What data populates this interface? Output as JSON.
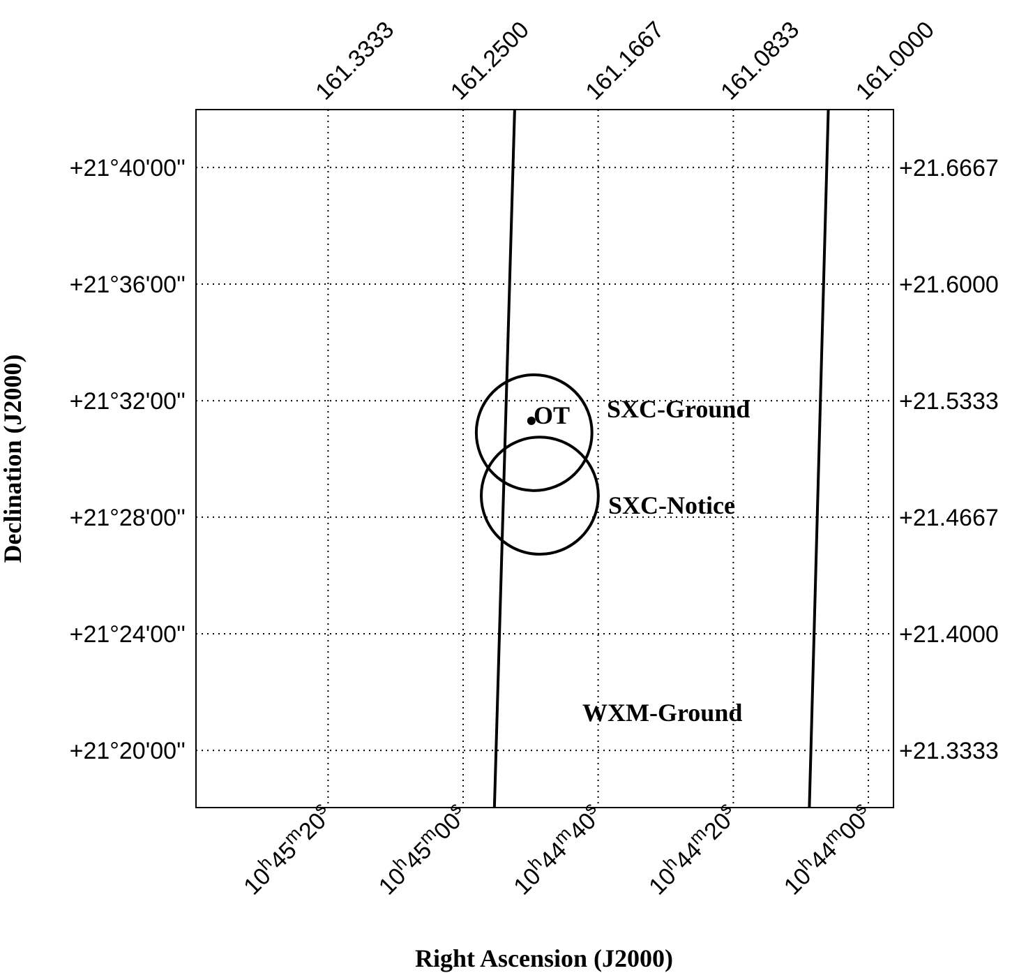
{
  "chart_data": {
    "type": "skymap",
    "xlabel": "Right Ascension (J2000)",
    "ylabel": "Declination (J2000)",
    "xlim": [
      161.4148,
      160.9845
    ],
    "ylim": [
      21.3006,
      21.6998
    ],
    "xticks": [
      {
        "value": 161.3333,
        "label": "10h45m20s"
      },
      {
        "value": 161.25,
        "label": "10h45m00s"
      },
      {
        "value": 161.1667,
        "label": "10h44m40s"
      },
      {
        "value": 161.0833,
        "label": "10h44m20s"
      },
      {
        "value": 161.0,
        "label": "10h44m00s"
      }
    ],
    "x2ticks": [
      161.3333,
      {
        "value": 161.25,
        "label": "161.2500"
      },
      161.1667,
      161.0833,
      {
        "value": 161.0,
        "label": "161.0000"
      }
    ],
    "yticks": [
      {
        "value": 21.6667,
        "label": "+21°40'00''"
      },
      {
        "value": 21.6,
        "label": "+21°36'00''"
      },
      {
        "value": 21.5333,
        "label": "+21°32'00''"
      },
      {
        "value": 21.4667,
        "label": "+21°28'00''"
      },
      {
        "value": 21.4,
        "label": "+21°24'00''"
      },
      {
        "value": 21.3333,
        "label": "+21°20'00''"
      }
    ],
    "y2ticks": [
      {
        "value": 21.6667,
        "label": "+21.6667"
      },
      {
        "value": 21.6,
        "label": "+21.6000"
      },
      {
        "value": 21.5333,
        "label": "+21.5333"
      },
      {
        "value": 21.4667,
        "label": "+21.4667"
      },
      {
        "value": 21.4,
        "label": "+21.4000"
      },
      {
        "value": 21.3333,
        "label": "+21.3333"
      }
    ],
    "grid": true,
    "series": [
      {
        "name": "WXM-Ground",
        "shape": "line",
        "color": "#000000",
        "x": [
          161.2182,
          161.2307,
          null,
          161.0247,
          161.0364
        ],
        "y": [
          21.6998,
          21.3006,
          null,
          21.6998,
          21.3006
        ]
      },
      {
        "name": "SXC-Ground",
        "shape": "circle",
        "color": "#000000",
        "x": [
          161.2062
        ],
        "y": [
          21.515
        ],
        "radius": [
          0.0331
        ]
      },
      {
        "name": "SXC-Notice",
        "shape": "circle",
        "color": "#000000",
        "x": [
          161.2027
        ],
        "y": [
          21.479
        ],
        "radius": [
          0.0335
        ]
      },
      {
        "name": "OT",
        "shape": "point",
        "color": "#000000",
        "x": [
          161.2079
        ],
        "y": [
          21.5218
        ]
      }
    ]
  }
}
